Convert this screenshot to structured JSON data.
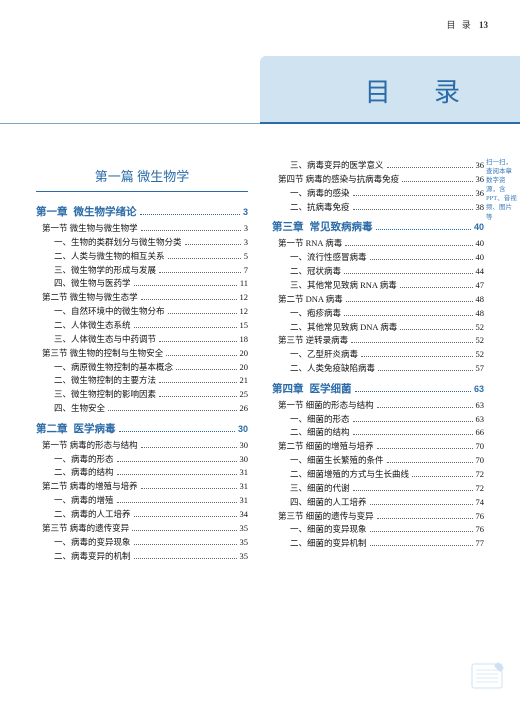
{
  "header": {
    "label": "目 录",
    "page": "13"
  },
  "title": "目 录",
  "part_title": "第一篇 微生物学",
  "side_note": "扫一扫，查阅本章数字资源，含PPT、音视频、图片等",
  "left": [
    {
      "type": "part"
    },
    {
      "type": "chapter",
      "num": "第一章",
      "name": "微生物学绪论",
      "pg": "3"
    },
    {
      "type": "sec",
      "label": "第一节 微生物与微生物学",
      "pg": "3"
    },
    {
      "type": "item",
      "label": "一、生物的类群划分与微生物分类",
      "pg": "3"
    },
    {
      "type": "item",
      "label": "二、人类与微生物的相互关系",
      "pg": "5"
    },
    {
      "type": "item",
      "label": "三、微生物学的形成与发展",
      "pg": "7"
    },
    {
      "type": "item",
      "label": "四、微生物与医药学",
      "pg": "11"
    },
    {
      "type": "sec",
      "label": "第二节 微生物与微生态学",
      "pg": "12"
    },
    {
      "type": "item",
      "label": "一、自然环境中的微生物分布",
      "pg": "12"
    },
    {
      "type": "item",
      "label": "二、人体微生态系统",
      "pg": "15"
    },
    {
      "type": "item",
      "label": "三、人体微生态与中药调节",
      "pg": "18"
    },
    {
      "type": "sec",
      "label": "第三节 微生物的控制与生物安全",
      "pg": "20"
    },
    {
      "type": "item",
      "label": "一、病原微生物控制的基本概念",
      "pg": "20"
    },
    {
      "type": "item",
      "label": "二、微生物控制的主要方法",
      "pg": "21"
    },
    {
      "type": "item",
      "label": "三、微生物控制的影响因素",
      "pg": "25"
    },
    {
      "type": "item",
      "label": "四、生物安全",
      "pg": "26"
    },
    {
      "type": "chapter",
      "num": "第二章",
      "name": "医学病毒",
      "pg": "30"
    },
    {
      "type": "sec",
      "label": "第一节 病毒的形态与结构",
      "pg": "30"
    },
    {
      "type": "item",
      "label": "一、病毒的形态",
      "pg": "30"
    },
    {
      "type": "item",
      "label": "二、病毒的结构",
      "pg": "31"
    },
    {
      "type": "sec",
      "label": "第二节 病毒的增殖与培养",
      "pg": "31"
    },
    {
      "type": "item",
      "label": "一、病毒的增殖",
      "pg": "31"
    },
    {
      "type": "item",
      "label": "二、病毒的人工培养",
      "pg": "34"
    },
    {
      "type": "sec",
      "label": "第三节 病毒的遗传变异",
      "pg": "35"
    },
    {
      "type": "item",
      "label": "一、病毒的变异现象",
      "pg": "35"
    },
    {
      "type": "item",
      "label": "二、病毒变异的机制",
      "pg": "35"
    }
  ],
  "right": [
    {
      "type": "item",
      "label": "三、病毒变异的医学意义",
      "pg": "36"
    },
    {
      "type": "sec",
      "label": "第四节 病毒的感染与抗病毒免疫",
      "pg": "36"
    },
    {
      "type": "item",
      "label": "一、病毒的感染",
      "pg": "36"
    },
    {
      "type": "item",
      "label": "二、抗病毒免疫",
      "pg": "38"
    },
    {
      "type": "chapter",
      "num": "第三章",
      "name": "常见致病病毒",
      "pg": "40"
    },
    {
      "type": "sec",
      "label": "第一节 RNA 病毒",
      "pg": "40"
    },
    {
      "type": "item",
      "label": "一、流行性感冒病毒",
      "pg": "40"
    },
    {
      "type": "item",
      "label": "二、冠状病毒",
      "pg": "44"
    },
    {
      "type": "item",
      "label": "三、其他常见致病 RNA 病毒",
      "pg": "47"
    },
    {
      "type": "sec",
      "label": "第二节 DNA 病毒",
      "pg": "48"
    },
    {
      "type": "item",
      "label": "一、疱疹病毒",
      "pg": "48"
    },
    {
      "type": "item",
      "label": "二、其他常见致病 DNA 病毒",
      "pg": "52"
    },
    {
      "type": "sec",
      "label": "第三节 逆转录病毒",
      "pg": "52"
    },
    {
      "type": "item",
      "label": "一、乙型肝炎病毒",
      "pg": "52"
    },
    {
      "type": "item",
      "label": "二、人类免疫缺陷病毒",
      "pg": "57"
    },
    {
      "type": "chapter",
      "num": "第四章",
      "name": "医学细菌",
      "pg": "63"
    },
    {
      "type": "sec",
      "label": "第一节 细菌的形态与结构",
      "pg": "63"
    },
    {
      "type": "item",
      "label": "一、细菌的形态",
      "pg": "63"
    },
    {
      "type": "item",
      "label": "二、细菌的结构",
      "pg": "66"
    },
    {
      "type": "sec",
      "label": "第二节 细菌的增殖与培养",
      "pg": "70"
    },
    {
      "type": "item",
      "label": "一、细菌生长繁殖的条件",
      "pg": "70"
    },
    {
      "type": "item",
      "label": "二、细菌增殖的方式与生长曲线",
      "pg": "72"
    },
    {
      "type": "item",
      "label": "三、细菌的代谢",
      "pg": "72"
    },
    {
      "type": "item",
      "label": "四、细菌的人工培养",
      "pg": "74"
    },
    {
      "type": "sec",
      "label": "第三节 细菌的遗传与变异",
      "pg": "76"
    },
    {
      "type": "item",
      "label": "一、细菌的变异现象",
      "pg": "76"
    },
    {
      "type": "item",
      "label": "二、细菌的变异机制",
      "pg": "77"
    }
  ]
}
